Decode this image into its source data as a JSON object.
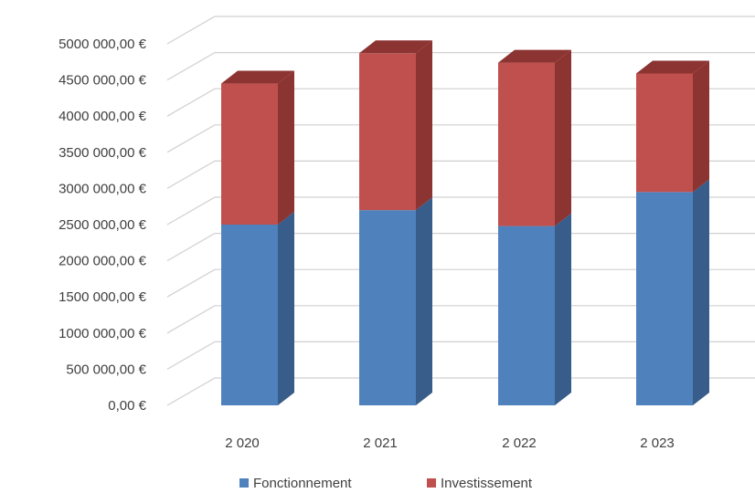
{
  "chart_data": {
    "type": "bar",
    "stacked": true,
    "three_d": true,
    "categories": [
      "2 020",
      "2 021",
      "2 022",
      "2 023"
    ],
    "series": [
      {
        "name": "Fonctionnement",
        "values": [
          2500000,
          2700000,
          2480000,
          2950000
        ],
        "color": "#4f81bd",
        "side_color": "#385d8a"
      },
      {
        "name": "Investissement",
        "values": [
          1950000,
          2170000,
          2260000,
          1640000
        ],
        "color": "#c0504d",
        "side_color": "#8b3432"
      }
    ],
    "yticks": [
      "0,00 €",
      "500 000,00 €",
      "1000 000,00 €",
      "1500 000,00 €",
      "2000 000,00 €",
      "2500 000,00 €",
      "3000 000,00 €",
      "3500 000,00 €",
      "4000 000,00 €",
      "4500 000,00 €",
      "5000 000,00 €"
    ],
    "ylim": [
      0,
      5000000
    ],
    "grid": true,
    "legend_position": "bottom"
  }
}
